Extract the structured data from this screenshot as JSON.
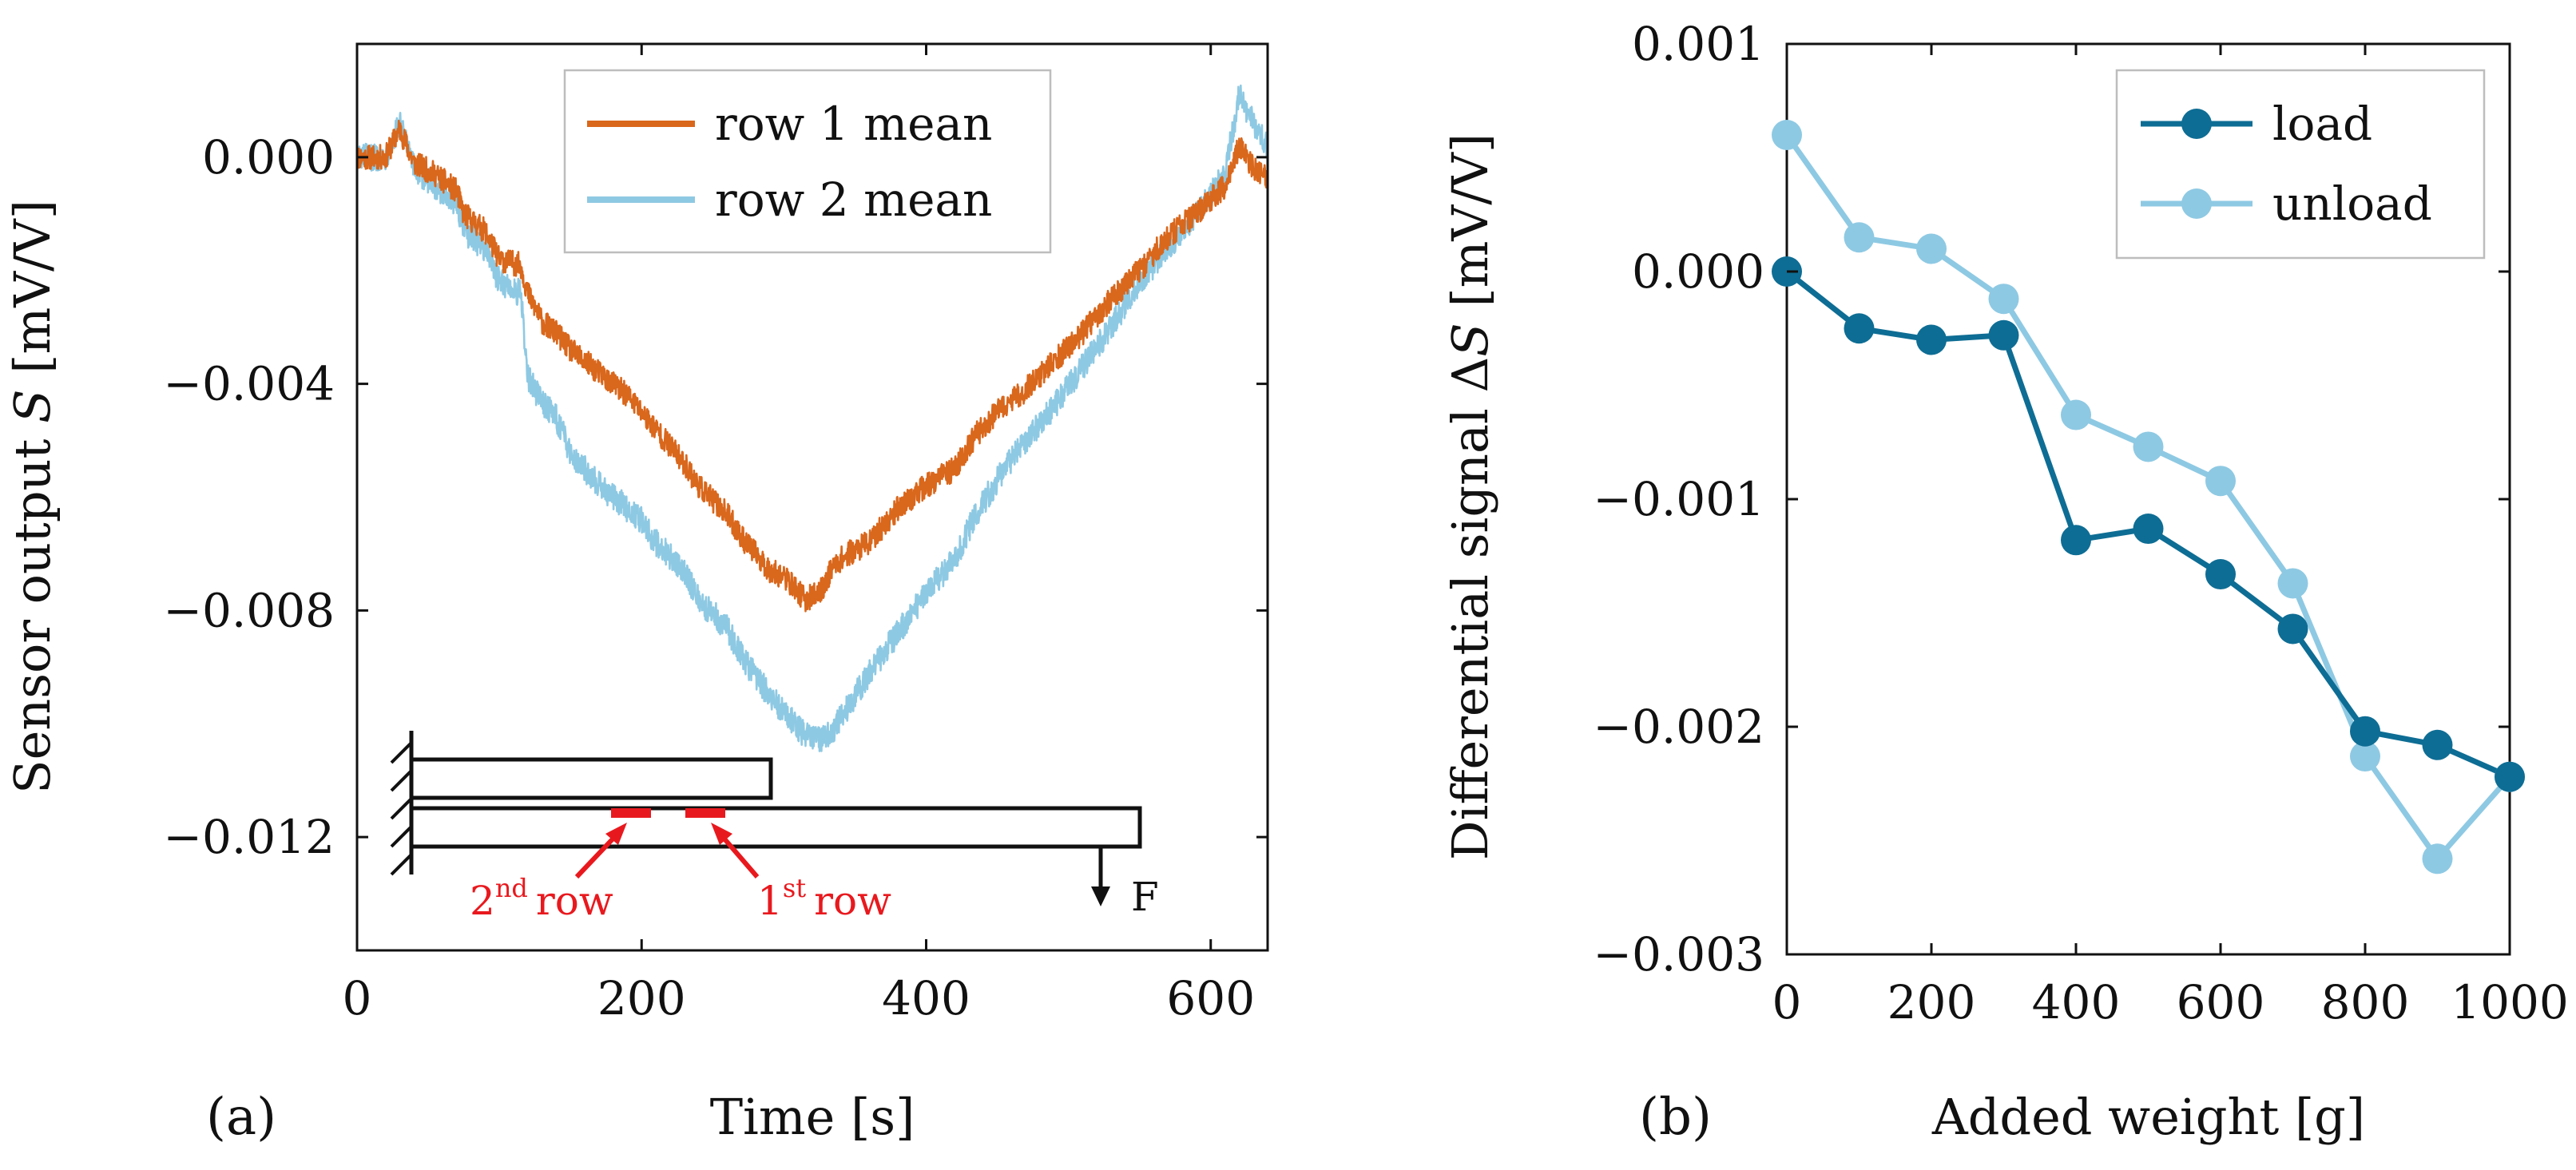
{
  "chart_data": [
    {
      "id": "a",
      "type": "line",
      "panel_label": "(a)",
      "xlabel": "Time [s]",
      "ylabel_parts": [
        "Sensor output ",
        "S",
        " [mV/V]"
      ],
      "xlim": [
        0,
        640
      ],
      "ylim": [
        -0.014,
        0.002
      ],
      "xticks": [
        0,
        200,
        400,
        600
      ],
      "xtick_labels": [
        "0",
        "200",
        "400",
        "600"
      ],
      "yticks": [
        0,
        -0.004,
        -0.008,
        -0.012
      ],
      "ytick_labels": [
        "0.000",
        "−0.004",
        "−0.008",
        "−0.012"
      ],
      "legend_position": "top-right",
      "series": [
        {
          "name": "row 1 mean",
          "color": "#d9671c",
          "noise": 0.00022,
          "x": [
            0,
            20,
            30,
            40,
            55,
            70,
            75,
            90,
            100,
            115,
            120,
            130,
            140,
            150,
            160,
            175,
            190,
            200,
            210,
            230,
            240,
            260,
            270,
            290,
            300,
            315,
            325,
            335,
            345,
            360,
            380,
            400,
            420,
            435,
            450,
            470,
            490,
            510,
            530,
            550,
            570,
            590,
            610,
            620,
            630,
            640
          ],
          "y": [
            0.0,
            0.0,
            0.0005,
            -0.0001,
            -0.0003,
            -0.0006,
            -0.001,
            -0.0013,
            -0.0018,
            -0.0019,
            -0.0024,
            -0.0029,
            -0.0031,
            -0.0034,
            -0.0036,
            -0.0039,
            -0.0042,
            -0.0045,
            -0.0048,
            -0.0054,
            -0.0058,
            -0.0063,
            -0.0067,
            -0.0073,
            -0.0074,
            -0.0078,
            -0.0077,
            -0.0072,
            -0.007,
            -0.0068,
            -0.0062,
            -0.0058,
            -0.0055,
            -0.0049,
            -0.0045,
            -0.0041,
            -0.0036,
            -0.0031,
            -0.0025,
            -0.002,
            -0.0014,
            -0.001,
            -0.0005,
            0.0002,
            -0.0002,
            -0.0004
          ]
        },
        {
          "name": "row 2 mean",
          "color": "#8ec9e3",
          "noise": 0.00024,
          "x": [
            0,
            20,
            30,
            40,
            55,
            70,
            75,
            90,
            100,
            115,
            120,
            130,
            140,
            150,
            160,
            175,
            190,
            200,
            210,
            230,
            240,
            260,
            270,
            290,
            300,
            315,
            325,
            335,
            345,
            360,
            380,
            400,
            420,
            435,
            450,
            470,
            490,
            510,
            530,
            550,
            570,
            590,
            610,
            620,
            630,
            640
          ],
          "y": [
            0.0,
            0.0,
            0.0006,
            -0.0002,
            -0.0005,
            -0.0008,
            -0.0013,
            -0.0016,
            -0.0022,
            -0.0024,
            -0.0039,
            -0.0043,
            -0.0046,
            -0.0052,
            -0.0055,
            -0.0059,
            -0.0062,
            -0.0064,
            -0.0068,
            -0.0073,
            -0.0078,
            -0.0083,
            -0.0088,
            -0.0095,
            -0.0098,
            -0.0102,
            -0.0103,
            -0.0101,
            -0.0097,
            -0.0091,
            -0.0084,
            -0.0077,
            -0.0071,
            -0.0063,
            -0.0057,
            -0.005,
            -0.0044,
            -0.0037,
            -0.003,
            -0.0022,
            -0.0016,
            -0.001,
            -0.0003,
            0.0011,
            0.0006,
            0.0002
          ]
        }
      ],
      "inset": {
        "force_label": "F",
        "row2_label": "row",
        "row2_ordinal": "2",
        "row2_suffix": "nd",
        "row1_label": "row",
        "row1_ordinal": "1",
        "row1_suffix": "st",
        "marker_color": "#e8191e"
      }
    },
    {
      "id": "b",
      "type": "line",
      "panel_label": "(b)",
      "xlabel": "Added weight [g]",
      "ylabel_parts": [
        "Differential signal Δ",
        "S",
        " [mV/V]"
      ],
      "xlim": [
        0,
        1000
      ],
      "ylim": [
        -0.003,
        0.001
      ],
      "xticks": [
        0,
        200,
        400,
        600,
        800,
        1000
      ],
      "xtick_labels": [
        "0",
        "200",
        "400",
        "600",
        "800",
        "1000"
      ],
      "yticks": [
        0.001,
        0,
        -0.001,
        -0.002,
        -0.003
      ],
      "ytick_labels": [
        "0.001",
        "0.000",
        "−0.001",
        "−0.002",
        "−0.003"
      ],
      "legend_position": "top-right",
      "series": [
        {
          "name": "load",
          "color": "#0e6d94",
          "x": [
            0,
            100,
            200,
            300,
            400,
            500,
            600,
            700,
            800,
            900,
            1000
          ],
          "y": [
            0.0,
            -0.00025,
            -0.0003,
            -0.00028,
            -0.00118,
            -0.00113,
            -0.00133,
            -0.00157,
            -0.00202,
            -0.00208,
            -0.00222
          ]
        },
        {
          "name": "unload",
          "color": "#8ec9e3",
          "x": [
            0,
            100,
            200,
            300,
            400,
            500,
            600,
            700,
            800,
            900,
            1000
          ],
          "y": [
            0.0006,
            0.00015,
            0.0001,
            -0.00012,
            -0.00063,
            -0.00077,
            -0.00092,
            -0.00137,
            -0.00213,
            -0.00258,
            -0.00222
          ]
        }
      ]
    }
  ]
}
